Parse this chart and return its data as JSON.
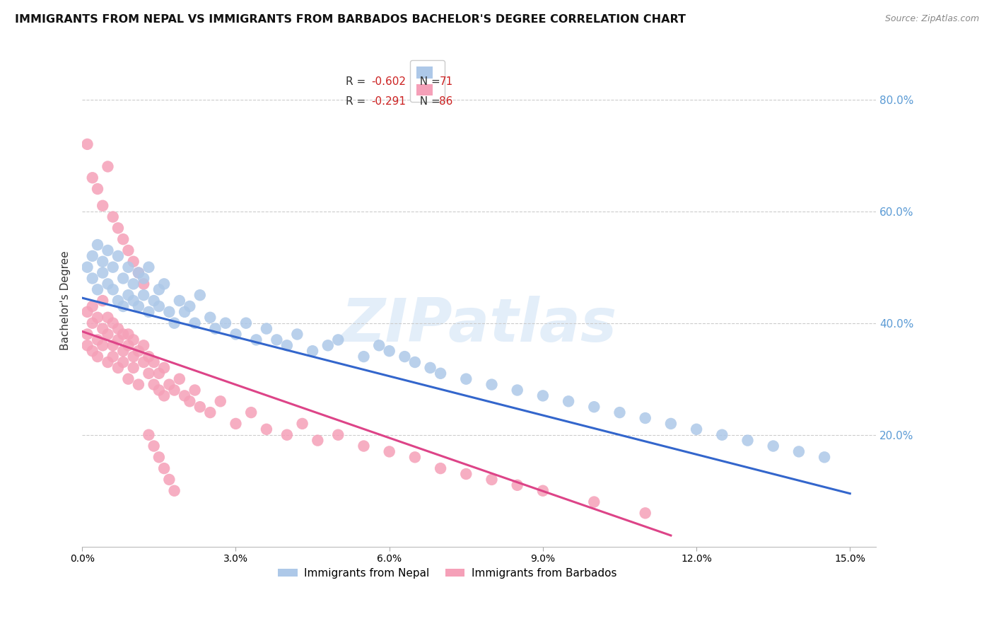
{
  "title": "IMMIGRANTS FROM NEPAL VS IMMIGRANTS FROM BARBADOS BACHELOR'S DEGREE CORRELATION CHART",
  "source": "Source: ZipAtlas.com",
  "ylabel": "Bachelor's Degree",
  "xlim": [
    0.0,
    0.155
  ],
  "ylim": [
    0.0,
    0.88
  ],
  "right_yticks": [
    0.2,
    0.4,
    0.6,
    0.8
  ],
  "right_yticklabels": [
    "20.0%",
    "40.0%",
    "60.0%",
    "80.0%"
  ],
  "xticks": [
    0.0,
    0.03,
    0.06,
    0.09,
    0.12,
    0.15
  ],
  "xticklabels": [
    "0.0%",
    "3.0%",
    "6.0%",
    "9.0%",
    "12.0%",
    "15.0%"
  ],
  "nepal_color": "#adc8e8",
  "barbados_color": "#f5a0b8",
  "nepal_line_color": "#3366cc",
  "barbados_line_color": "#dd4488",
  "nepal_R": -0.602,
  "nepal_N": 71,
  "barbados_R": -0.291,
  "barbados_N": 86,
  "nepal_line_x0": 0.0,
  "nepal_line_y0": 0.445,
  "nepal_line_x1": 0.15,
  "nepal_line_y1": 0.095,
  "barbados_line_x0": 0.0,
  "barbados_line_y0": 0.385,
  "barbados_line_x1": 0.115,
  "barbados_line_y1": 0.02,
  "watermark_text": "ZIPatlas",
  "legend_nepal": "Immigrants from Nepal",
  "legend_barbados": "Immigrants from Barbados",
  "nepal_x": [
    0.001,
    0.002,
    0.002,
    0.003,
    0.003,
    0.004,
    0.004,
    0.005,
    0.005,
    0.006,
    0.006,
    0.007,
    0.007,
    0.008,
    0.008,
    0.009,
    0.009,
    0.01,
    0.01,
    0.011,
    0.011,
    0.012,
    0.012,
    0.013,
    0.013,
    0.014,
    0.015,
    0.015,
    0.016,
    0.017,
    0.018,
    0.019,
    0.02,
    0.021,
    0.022,
    0.023,
    0.025,
    0.026,
    0.028,
    0.03,
    0.032,
    0.034,
    0.036,
    0.038,
    0.04,
    0.042,
    0.045,
    0.048,
    0.05,
    0.055,
    0.058,
    0.06,
    0.063,
    0.065,
    0.068,
    0.07,
    0.075,
    0.08,
    0.085,
    0.09,
    0.095,
    0.1,
    0.105,
    0.11,
    0.115,
    0.12,
    0.125,
    0.13,
    0.135,
    0.14,
    0.145
  ],
  "nepal_y": [
    0.5,
    0.48,
    0.52,
    0.46,
    0.54,
    0.49,
    0.51,
    0.47,
    0.53,
    0.46,
    0.5,
    0.44,
    0.52,
    0.48,
    0.43,
    0.5,
    0.45,
    0.47,
    0.44,
    0.49,
    0.43,
    0.48,
    0.45,
    0.42,
    0.5,
    0.44,
    0.46,
    0.43,
    0.47,
    0.42,
    0.4,
    0.44,
    0.42,
    0.43,
    0.4,
    0.45,
    0.41,
    0.39,
    0.4,
    0.38,
    0.4,
    0.37,
    0.39,
    0.37,
    0.36,
    0.38,
    0.35,
    0.36,
    0.37,
    0.34,
    0.36,
    0.35,
    0.34,
    0.33,
    0.32,
    0.31,
    0.3,
    0.29,
    0.28,
    0.27,
    0.26,
    0.25,
    0.24,
    0.23,
    0.22,
    0.21,
    0.2,
    0.19,
    0.18,
    0.17,
    0.16
  ],
  "barbados_x": [
    0.001,
    0.001,
    0.001,
    0.002,
    0.002,
    0.002,
    0.003,
    0.003,
    0.003,
    0.004,
    0.004,
    0.004,
    0.005,
    0.005,
    0.005,
    0.006,
    0.006,
    0.006,
    0.007,
    0.007,
    0.007,
    0.008,
    0.008,
    0.008,
    0.009,
    0.009,
    0.009,
    0.01,
    0.01,
    0.01,
    0.011,
    0.011,
    0.012,
    0.012,
    0.013,
    0.013,
    0.014,
    0.014,
    0.015,
    0.015,
    0.016,
    0.016,
    0.017,
    0.018,
    0.019,
    0.02,
    0.021,
    0.022,
    0.023,
    0.025,
    0.027,
    0.03,
    0.033,
    0.036,
    0.04,
    0.043,
    0.046,
    0.05,
    0.055,
    0.06,
    0.065,
    0.07,
    0.075,
    0.08,
    0.085,
    0.09,
    0.1,
    0.11,
    0.001,
    0.002,
    0.003,
    0.004,
    0.005,
    0.006,
    0.007,
    0.008,
    0.009,
    0.01,
    0.011,
    0.012,
    0.013,
    0.014,
    0.015,
    0.016,
    0.017,
    0.018
  ],
  "barbados_y": [
    0.38,
    0.42,
    0.36,
    0.4,
    0.35,
    0.43,
    0.37,
    0.41,
    0.34,
    0.39,
    0.36,
    0.44,
    0.38,
    0.33,
    0.41,
    0.36,
    0.4,
    0.34,
    0.37,
    0.32,
    0.39,
    0.35,
    0.38,
    0.33,
    0.36,
    0.3,
    0.38,
    0.34,
    0.37,
    0.32,
    0.35,
    0.29,
    0.33,
    0.36,
    0.31,
    0.34,
    0.29,
    0.33,
    0.28,
    0.31,
    0.27,
    0.32,
    0.29,
    0.28,
    0.3,
    0.27,
    0.26,
    0.28,
    0.25,
    0.24,
    0.26,
    0.22,
    0.24,
    0.21,
    0.2,
    0.22,
    0.19,
    0.2,
    0.18,
    0.17,
    0.16,
    0.14,
    0.13,
    0.12,
    0.11,
    0.1,
    0.08,
    0.06,
    0.72,
    0.66,
    0.64,
    0.61,
    0.68,
    0.59,
    0.57,
    0.55,
    0.53,
    0.51,
    0.49,
    0.47,
    0.2,
    0.18,
    0.16,
    0.14,
    0.12,
    0.1
  ]
}
